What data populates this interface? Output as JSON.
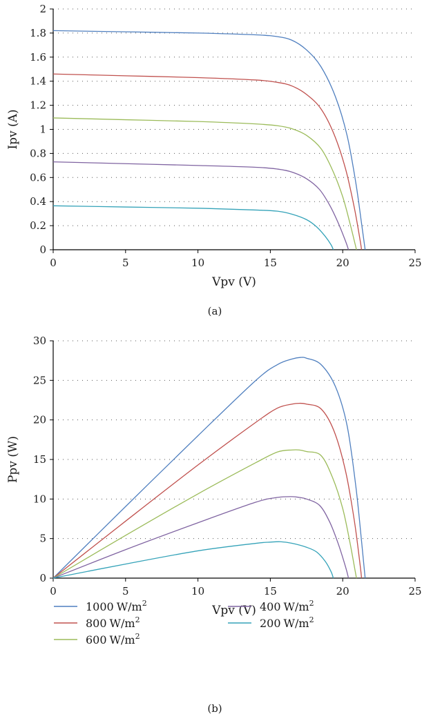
{
  "colors": {
    "1000": "#4f7fbf",
    "800": "#c0504d",
    "600": "#9bbb59",
    "400": "#7f63a1",
    "200": "#33a2b8",
    "axis": "#000000",
    "grid": "#555555"
  },
  "legend": {
    "items": [
      {
        "key": "1000",
        "value": "1000",
        "unit": "W/m",
        "sup": "2"
      },
      {
        "key": "800",
        "value": "800",
        "unit": "W/m",
        "sup": "2"
      },
      {
        "key": "600",
        "value": "600",
        "unit": "W/m",
        "sup": "2"
      },
      {
        "key": "400",
        "value": "400",
        "unit": "W/m",
        "sup": "2"
      },
      {
        "key": "200",
        "value": "200",
        "unit": "W/m",
        "sup": "2"
      }
    ]
  },
  "chart_data": [
    {
      "type": "line",
      "caption": "(a)",
      "xlabel": "Vpv (V)",
      "ylabel": "Ipv (A)",
      "xlim": [
        0,
        25
      ],
      "ylim": [
        0,
        2
      ],
      "xticks": [
        "0",
        "5",
        "10",
        "15",
        "20",
        "25"
      ],
      "yticks": [
        "0",
        "0.2",
        "0.4",
        "0.6",
        "0.8",
        "1",
        "1.2",
        "1.4",
        "1.6",
        "1.8",
        "2"
      ],
      "grid": "horizontal dotted",
      "series": [
        {
          "key": "1000",
          "points": [
            [
              0,
              1.82
            ],
            [
              5,
              1.81
            ],
            [
              10,
              1.8
            ],
            [
              14,
              1.785
            ],
            [
              15.5,
              1.77
            ],
            [
              16.5,
              1.74
            ],
            [
              17.5,
              1.66
            ],
            [
              18.5,
              1.52
            ],
            [
              19.5,
              1.27
            ],
            [
              20.3,
              0.95
            ],
            [
              20.9,
              0.56
            ],
            [
              21.3,
              0.22
            ],
            [
              21.55,
              0
            ]
          ]
        },
        {
          "key": "800",
          "points": [
            [
              0,
              1.46
            ],
            [
              5,
              1.445
            ],
            [
              10,
              1.43
            ],
            [
              14,
              1.41
            ],
            [
              15.5,
              1.39
            ],
            [
              16.5,
              1.36
            ],
            [
              17.5,
              1.29
            ],
            [
              18.5,
              1.17
            ],
            [
              19.4,
              0.96
            ],
            [
              20.2,
              0.67
            ],
            [
              20.8,
              0.35
            ],
            [
              21.2,
              0.08
            ],
            [
              21.3,
              0
            ]
          ]
        },
        {
          "key": "600",
          "points": [
            [
              0,
              1.095
            ],
            [
              5,
              1.08
            ],
            [
              10,
              1.065
            ],
            [
              14,
              1.045
            ],
            [
              15.5,
              1.03
            ],
            [
              16.5,
              1.005
            ],
            [
              17.5,
              0.95
            ],
            [
              18.5,
              0.84
            ],
            [
              19.3,
              0.66
            ],
            [
              20.0,
              0.44
            ],
            [
              20.5,
              0.22
            ],
            [
              20.85,
              0.05
            ],
            [
              20.95,
              0
            ]
          ]
        },
        {
          "key": "400",
          "points": [
            [
              0,
              0.73
            ],
            [
              5,
              0.715
            ],
            [
              10,
              0.7
            ],
            [
              14,
              0.685
            ],
            [
              15.5,
              0.67
            ],
            [
              16.5,
              0.645
            ],
            [
              17.5,
              0.59
            ],
            [
              18.4,
              0.5
            ],
            [
              19.1,
              0.37
            ],
            [
              19.7,
              0.22
            ],
            [
              20.2,
              0.07
            ],
            [
              20.4,
              0
            ]
          ]
        },
        {
          "key": "200",
          "points": [
            [
              0,
              0.365
            ],
            [
              5,
              0.355
            ],
            [
              10,
              0.345
            ],
            [
              14,
              0.33
            ],
            [
              15.5,
              0.32
            ],
            [
              16.5,
              0.295
            ],
            [
              17.5,
              0.25
            ],
            [
              18.2,
              0.19
            ],
            [
              18.8,
              0.11
            ],
            [
              19.2,
              0.04
            ],
            [
              19.35,
              0
            ]
          ]
        }
      ]
    },
    {
      "type": "line",
      "caption": "(b)",
      "xlabel": "Vpv (V)",
      "ylabel": "Ppv (W)",
      "xlim": [
        0,
        25
      ],
      "ylim": [
        0,
        30
      ],
      "xticks": [
        "0",
        "5",
        "10",
        "15",
        "20",
        "25"
      ],
      "yticks": [
        "0",
        "5",
        "10",
        "15",
        "20",
        "25",
        "30"
      ],
      "grid": "horizontal dotted",
      "series": [
        {
          "key": "1000",
          "points": [
            [
              0,
              0
            ],
            [
              5,
              9.05
            ],
            [
              10,
              18.0
            ],
            [
              14,
              25.0
            ],
            [
              15.5,
              27.0
            ],
            [
              16.5,
              27.7
            ],
            [
              17.1,
              27.9
            ],
            [
              17.5,
              27.8
            ],
            [
              18.5,
              27.0
            ],
            [
              19.5,
              24.2
            ],
            [
              20.3,
              19.3
            ],
            [
              20.9,
              11.7
            ],
            [
              21.3,
              4.7
            ],
            [
              21.55,
              0
            ]
          ]
        },
        {
          "key": "800",
          "points": [
            [
              0,
              0
            ],
            [
              5,
              7.2
            ],
            [
              10,
              14.3
            ],
            [
              14,
              19.7
            ],
            [
              15.5,
              21.5
            ],
            [
              16.5,
              22.0
            ],
            [
              17.0,
              22.1
            ],
            [
              17.5,
              22.0
            ],
            [
              18.5,
              21.4
            ],
            [
              19.4,
              18.6
            ],
            [
              20.2,
              13.5
            ],
            [
              20.8,
              7.3
            ],
            [
              21.2,
              1.7
            ],
            [
              21.3,
              0
            ]
          ]
        },
        {
          "key": "600",
          "points": [
            [
              0,
              0
            ],
            [
              5,
              5.4
            ],
            [
              10,
              10.65
            ],
            [
              14,
              14.6
            ],
            [
              15.5,
              15.95
            ],
            [
              16.5,
              16.2
            ],
            [
              17.0,
              16.2
            ],
            [
              17.5,
              16.0
            ],
            [
              18.5,
              15.5
            ],
            [
              19.3,
              12.7
            ],
            [
              20.0,
              8.8
            ],
            [
              20.5,
              4.5
            ],
            [
              20.85,
              1.0
            ],
            [
              20.95,
              0
            ]
          ]
        },
        {
          "key": "400",
          "points": [
            [
              0,
              0
            ],
            [
              5,
              3.6
            ],
            [
              10,
              7.0
            ],
            [
              14,
              9.6
            ],
            [
              15.5,
              10.2
            ],
            [
              16.5,
              10.3
            ],
            [
              17.0,
              10.2
            ],
            [
              17.5,
              10.0
            ],
            [
              18.4,
              9.2
            ],
            [
              19.1,
              7.1
            ],
            [
              19.7,
              4.3
            ],
            [
              20.2,
              1.4
            ],
            [
              20.4,
              0
            ]
          ]
        },
        {
          "key": "200",
          "points": [
            [
              0,
              0
            ],
            [
              5,
              1.78
            ],
            [
              10,
              3.45
            ],
            [
              14,
              4.4
            ],
            [
              15.0,
              4.55
            ],
            [
              15.7,
              4.6
            ],
            [
              16.5,
              4.4
            ],
            [
              17.5,
              3.9
            ],
            [
              18.2,
              3.3
            ],
            [
              18.8,
              2.1
            ],
            [
              19.2,
              0.8
            ],
            [
              19.35,
              0
            ]
          ]
        }
      ]
    }
  ]
}
